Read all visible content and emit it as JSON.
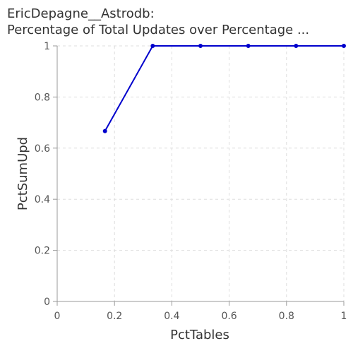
{
  "chart_data": {
    "type": "line",
    "title_lines": [
      "EricDepagne__Astrodb:",
      "Percentage of Total Updates over Percentage ..."
    ],
    "xlabel": "PctTables",
    "ylabel": "PctSumUpd",
    "xlim": [
      0,
      1
    ],
    "ylim": [
      0,
      1
    ],
    "xticks": [
      0,
      0.2,
      0.4,
      0.6,
      0.8,
      1
    ],
    "yticks": [
      0,
      0.2,
      0.4,
      0.6,
      0.8,
      1
    ],
    "xtick_labels": [
      "0",
      "0.2",
      "0.4",
      "0.6",
      "0.8",
      "1"
    ],
    "ytick_labels": [
      "0",
      "0.2",
      "0.4",
      "0.6",
      "0.8",
      "1"
    ],
    "grid": true,
    "series": [
      {
        "color": "#0000cc",
        "x": [
          0.1667,
          0.3333,
          0.5,
          0.6667,
          0.8333,
          1.0
        ],
        "y": [
          0.6667,
          1,
          1,
          1,
          1,
          1
        ]
      }
    ]
  }
}
